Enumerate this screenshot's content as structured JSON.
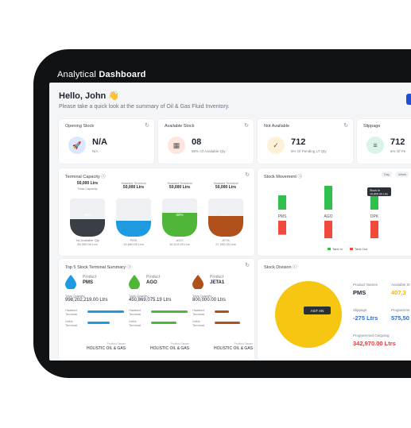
{
  "header": {
    "title_light": "Analytical ",
    "title_bold": "Dashboard"
  },
  "greeting": {
    "title": "Hello, John 👋",
    "subtitle": "Please take a quick look at the summary of Oil & Gas Fluid Inventory."
  },
  "stats": [
    {
      "title": "Opening Stock",
      "value": "N/A",
      "sub": "N/A",
      "icon": "rocket-icon",
      "color": "#dbe7ff",
      "glyph": "🚀"
    },
    {
      "title": "Available Stock",
      "value": "08",
      "sub": "98% Of Available Qty",
      "icon": "boxes-icon",
      "color": "#ffe6dc",
      "glyph": "▦"
    },
    {
      "title": "Not Available",
      "value": "712",
      "sub": "6% Of Pending LT Qty",
      "icon": "check-circle-icon",
      "color": "#fff0d8",
      "glyph": "✓"
    },
    {
      "title": "Slippage",
      "value": "712",
      "sub": "6% Of Pe",
      "icon": "sliders-icon",
      "color": "#d9f5ea",
      "glyph": "≡"
    }
  ],
  "terminal": {
    "title": "Terminal Capacity ⓘ",
    "tanks": [
      {
        "head": "",
        "capacity": "50,000 Ltrs",
        "cap_label": "Total Capacity",
        "fill": 0.45,
        "color": "#3a3f46",
        "pct": "90%",
        "foot": "Tot Available Qty",
        "foot_val": "45,060.00 Ltrs"
      },
      {
        "head": "Haasted Terminal",
        "capacity": "50,000 Ltrs",
        "cap_label": "",
        "fill": 0.42,
        "color": "#1e9be0",
        "pct": "",
        "foot": "PMS",
        "foot_val": "15,660.00 Ltrs"
      },
      {
        "head": "Haasted Terminal",
        "capacity": "50,000 Ltrs",
        "cap_label": "",
        "fill": 0.62,
        "color": "#4fb63a",
        "pct": "80%",
        "foot": "AGO",
        "foot_val": "30,512.00 Ltrs"
      },
      {
        "head": "Haasted Terminal",
        "capacity": "50,000 Ltrs",
        "cap_label": "",
        "fill": 0.55,
        "color": "#b0501b",
        "pct": "5.6%",
        "foot": "JETA",
        "foot_val": "27,000.00 Ltrs"
      }
    ]
  },
  "movement": {
    "title": "Stock Movement ⓘ",
    "tabs": [
      "Day",
      "Week"
    ],
    "tooltip_line1": "Stock In",
    "tooltip_line2": "10,600.00 Ltrs",
    "legend_in": "Tank In",
    "legend_out": "Tank Out",
    "chart_data": {
      "type": "bar",
      "categories": [
        "PMS",
        "AGO",
        "DPK"
      ],
      "series": [
        {
          "name": "Tank In",
          "values": [
            0.6,
            1.0,
            0.6
          ],
          "color": "#2fbf4a"
        },
        {
          "name": "Tank Out",
          "values": [
            0.8,
            1.0,
            1.0
          ],
          "color": "#f04a3d"
        }
      ]
    }
  },
  "top5": {
    "title": "Top 5 Stock Terminal Summary ⓘ",
    "products": [
      {
        "label": "Product",
        "name": "PMS",
        "tq_label": "Total Quantity",
        "tq": "998,202,219.00 Ltrs",
        "t1": "Haasted Terminal",
        "t2": "Orlbe Terminal",
        "color": "#1e9be0",
        "b1": 1.0,
        "b2": 0.6,
        "foot": "Product Owner",
        "owner": "HOLISTIC OIL & GAS"
      },
      {
        "label": "Product",
        "name": "AGO",
        "tq_label": "Total Quantity",
        "tq": "450,869,075.19 Ltrs",
        "t1": "Haasted Terminal",
        "t2": "Orlbe Terminal",
        "color": "#4fb63a",
        "b1": 1.0,
        "b2": 0.7,
        "foot": "Product Owner",
        "owner": "HOLISTIC OIL & GAS"
      },
      {
        "label": "Product",
        "name": "JETA1",
        "tq_label": "Total Quantity",
        "tq": "800,000.00 Ltrs",
        "t1": "Haasted Terminal",
        "t2": "Orlbe Terminal",
        "color": "#b0501b",
        "b1": 0.4,
        "b2": 0.7,
        "foot": "Product Owner",
        "owner": "HOLISTIC OIL & GAS"
      }
    ]
  },
  "division": {
    "title": "Stock Division ⓘ",
    "pie_label": "AGT AN",
    "chart_data": {
      "type": "pie",
      "categories": [
        "AGO"
      ],
      "values": [
        100
      ],
      "colors": [
        "#f7c613"
      ]
    },
    "product_name_label": "Product Names",
    "product_name": "PMS",
    "available_label": "Available St",
    "available_val": "407,3",
    "slippage_label": "Slippage",
    "slippage_val": "-275 Ltrs",
    "programmed_label": "Programme",
    "programmed_val": "575,50",
    "outgoing_label": "Programmed Outgoing",
    "outgoing_val": "342,970.00 Ltrs"
  }
}
